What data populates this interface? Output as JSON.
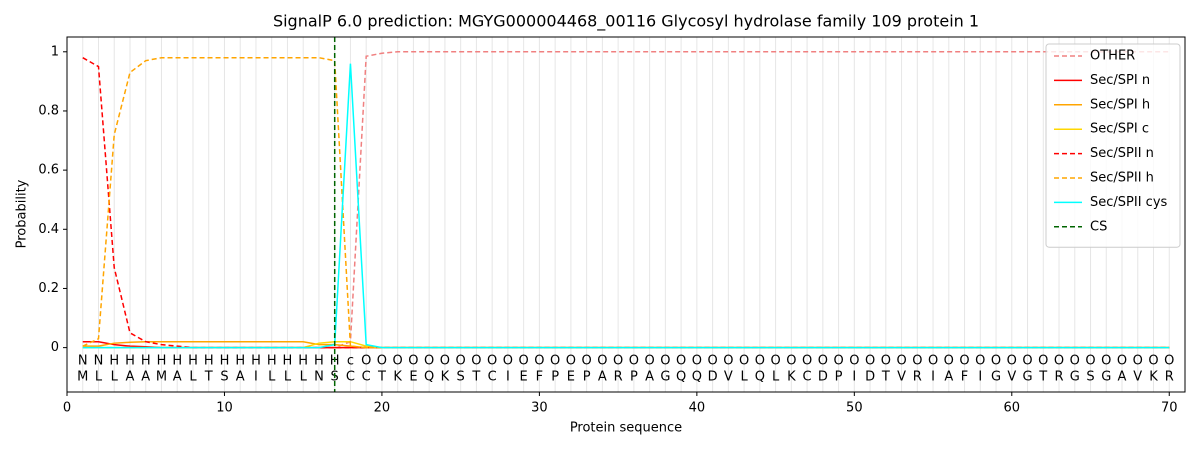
{
  "chart_data": {
    "type": "line",
    "title": "SignalP 6.0 prediction: MGYG000004468_00116 Glycosyl hydrolase family 109 protein 1",
    "xlabel": "Protein sequence",
    "ylabel": "Probability",
    "xlim": [
      0,
      71
    ],
    "ylim": [
      -0.15,
      1.05
    ],
    "xticks": [
      0,
      10,
      20,
      30,
      40,
      50,
      60,
      70
    ],
    "yticks": [
      0.0,
      0.2,
      0.4,
      0.6,
      0.8,
      1.0
    ],
    "grid": true,
    "legend": "upper right",
    "x": [
      1,
      2,
      3,
      4,
      5,
      6,
      7,
      8,
      9,
      10,
      11,
      12,
      13,
      14,
      15,
      16,
      17,
      18,
      19,
      20,
      21,
      22,
      23,
      24,
      25,
      26,
      27,
      28,
      29,
      30,
      31,
      32,
      33,
      34,
      35,
      36,
      37,
      38,
      39,
      40,
      41,
      42,
      43,
      44,
      45,
      46,
      47,
      48,
      49,
      50,
      51,
      52,
      53,
      54,
      55,
      56,
      57,
      58,
      59,
      60,
      61,
      62,
      63,
      64,
      65,
      66,
      67,
      68,
      69,
      70
    ],
    "residues": [
      "M",
      "L",
      "L",
      "A",
      "A",
      "M",
      "A",
      "L",
      "T",
      "S",
      "A",
      "I",
      "L",
      "L",
      "L",
      "N",
      "S",
      "C",
      "C",
      "T",
      "K",
      "E",
      "Q",
      "K",
      "S",
      "T",
      "C",
      "I",
      "E",
      "F",
      "P",
      "E",
      "P",
      "A",
      "R",
      "P",
      "A",
      "G",
      "Q",
      "Q",
      "D",
      "V",
      "L",
      "Q",
      "L",
      "K",
      "C",
      "D",
      "P",
      "I",
      "D",
      "T",
      "V",
      "R",
      "I",
      "A",
      "F",
      "I",
      "G",
      "V",
      "G",
      "T",
      "R",
      "G",
      "S",
      "G",
      "A",
      "V",
      "K",
      "R"
    ],
    "annotations": [
      "N",
      "N",
      "H",
      "H",
      "H",
      "H",
      "H",
      "H",
      "H",
      "H",
      "H",
      "H",
      "H",
      "H",
      "H",
      "H",
      "H",
      "c",
      "O",
      "O",
      "O",
      "O",
      "O",
      "O",
      "O",
      "O",
      "O",
      "O",
      "O",
      "O",
      "O",
      "O",
      "O",
      "O",
      "O",
      "O",
      "O",
      "O",
      "O",
      "O",
      "O",
      "O",
      "O",
      "O",
      "O",
      "O",
      "O",
      "O",
      "O",
      "O",
      "O",
      "O",
      "O",
      "O",
      "O",
      "O",
      "O",
      "O",
      "O",
      "O",
      "O",
      "O",
      "O",
      "O",
      "O",
      "O",
      "O",
      "O",
      "O",
      "O"
    ],
    "annotation_colors": {
      "N": "red",
      "H": "orange",
      "c": "cyan",
      "O": "grey"
    },
    "series": [
      {
        "name": "OTHER",
        "color": "#f08080",
        "dashed": true,
        "values": [
          0,
          0,
          0,
          0,
          0,
          0,
          0,
          0,
          0,
          0,
          0,
          0,
          0,
          0,
          0,
          0,
          0,
          0.02,
          0.985,
          0.995,
          1,
          1,
          1,
          1,
          1,
          1,
          1,
          1,
          1,
          1,
          1,
          1,
          1,
          1,
          1,
          1,
          1,
          1,
          1,
          1,
          1,
          1,
          1,
          1,
          1,
          1,
          1,
          1,
          1,
          1,
          1,
          1,
          1,
          1,
          1,
          1,
          1,
          1,
          1,
          1,
          1,
          1,
          1,
          1,
          1,
          1,
          1,
          1,
          1,
          1
        ]
      },
      {
        "name": "Sec/SPI n",
        "color": "red",
        "dashed": false,
        "values": [
          0.02,
          0.02,
          0.01,
          0.005,
          0.003,
          0,
          0,
          0,
          0,
          0,
          0,
          0,
          0,
          0,
          0,
          0,
          0,
          0,
          0,
          0,
          0,
          0,
          0,
          0,
          0,
          0,
          0,
          0,
          0,
          0,
          0,
          0,
          0,
          0,
          0,
          0,
          0,
          0,
          0,
          0,
          0,
          0,
          0,
          0,
          0,
          0,
          0,
          0,
          0,
          0,
          0,
          0,
          0,
          0,
          0,
          0,
          0,
          0,
          0,
          0,
          0,
          0,
          0,
          0,
          0,
          0,
          0,
          0,
          0,
          0
        ]
      },
      {
        "name": "Sec/SPI h",
        "color": "orange",
        "dashed": false,
        "values": [
          0.005,
          0.005,
          0.015,
          0.018,
          0.02,
          0.02,
          0.02,
          0.02,
          0.02,
          0.02,
          0.02,
          0.02,
          0.02,
          0.02,
          0.02,
          0.01,
          0.01,
          0.005,
          0,
          0,
          0,
          0,
          0,
          0,
          0,
          0,
          0,
          0,
          0,
          0,
          0,
          0,
          0,
          0,
          0,
          0,
          0,
          0,
          0,
          0,
          0,
          0,
          0,
          0,
          0,
          0,
          0,
          0,
          0,
          0,
          0,
          0,
          0,
          0,
          0,
          0,
          0,
          0,
          0,
          0,
          0,
          0,
          0,
          0,
          0,
          0,
          0,
          0,
          0,
          0
        ]
      },
      {
        "name": "Sec/SPI c",
        "color": "gold",
        "dashed": false,
        "values": [
          0,
          0,
          0,
          0,
          0,
          0,
          0,
          0,
          0,
          0,
          0,
          0,
          0,
          0,
          0,
          0.015,
          0.02,
          0.02,
          0.005,
          0,
          0,
          0,
          0,
          0,
          0,
          0,
          0,
          0,
          0,
          0,
          0,
          0,
          0,
          0,
          0,
          0,
          0,
          0,
          0,
          0,
          0,
          0,
          0,
          0,
          0,
          0,
          0,
          0,
          0,
          0,
          0,
          0,
          0,
          0,
          0,
          0,
          0,
          0,
          0,
          0,
          0,
          0,
          0,
          0,
          0,
          0,
          0,
          0,
          0,
          0
        ]
      },
      {
        "name": "Sec/SPII n",
        "color": "red",
        "dashed": true,
        "values": [
          0.98,
          0.95,
          0.27,
          0.05,
          0.02,
          0.01,
          0.005,
          0,
          0,
          0,
          0,
          0,
          0,
          0,
          0,
          0,
          0,
          0,
          0,
          0,
          0,
          0,
          0,
          0,
          0,
          0,
          0,
          0,
          0,
          0,
          0,
          0,
          0,
          0,
          0,
          0,
          0,
          0,
          0,
          0,
          0,
          0,
          0,
          0,
          0,
          0,
          0,
          0,
          0,
          0,
          0,
          0,
          0,
          0,
          0,
          0,
          0,
          0,
          0,
          0,
          0,
          0,
          0,
          0,
          0,
          0,
          0,
          0,
          0,
          0
        ]
      },
      {
        "name": "Sec/SPII h",
        "color": "orange",
        "dashed": true,
        "values": [
          0.005,
          0.03,
          0.72,
          0.93,
          0.97,
          0.98,
          0.98,
          0.98,
          0.98,
          0.98,
          0.98,
          0.98,
          0.98,
          0.98,
          0.98,
          0.98,
          0.97,
          0.005,
          0,
          0,
          0,
          0,
          0,
          0,
          0,
          0,
          0,
          0,
          0,
          0,
          0,
          0,
          0,
          0,
          0,
          0,
          0,
          0,
          0,
          0,
          0,
          0,
          0,
          0,
          0,
          0,
          0,
          0,
          0,
          0,
          0,
          0,
          0,
          0,
          0,
          0,
          0,
          0,
          0,
          0,
          0,
          0,
          0,
          0,
          0,
          0,
          0,
          0,
          0,
          0
        ]
      },
      {
        "name": "Sec/SPII cys",
        "color": "cyan",
        "dashed": false,
        "values": [
          0,
          0,
          0,
          0,
          0,
          0,
          0,
          0,
          0,
          0,
          0,
          0,
          0,
          0,
          0,
          0,
          0.01,
          0.96,
          0.01,
          0,
          0,
          0,
          0,
          0,
          0,
          0,
          0,
          0,
          0,
          0,
          0,
          0,
          0,
          0,
          0,
          0,
          0,
          0,
          0,
          0,
          0,
          0,
          0,
          0,
          0,
          0,
          0,
          0,
          0,
          0,
          0,
          0,
          0,
          0,
          0,
          0,
          0,
          0,
          0,
          0,
          0,
          0,
          0,
          0,
          0,
          0,
          0,
          0,
          0,
          0
        ]
      }
    ],
    "cs_line": {
      "name": "CS",
      "x": 17,
      "color": "darkgreen"
    }
  }
}
